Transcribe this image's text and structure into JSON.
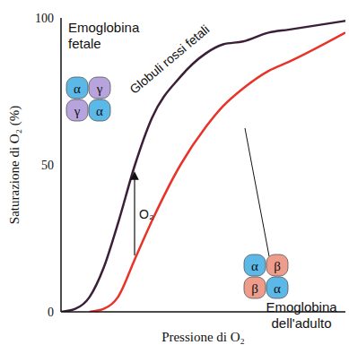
{
  "chart_data": {
    "type": "line",
    "xlabel": "Pressione di O₂",
    "ylabel": "Saturazione di O₂ (%)",
    "x": [
      0,
      5,
      10,
      15,
      20,
      26,
      32,
      42,
      51,
      57,
      64,
      73,
      80,
      100
    ],
    "series": [
      {
        "name": "Globuli rossi fetali",
        "color": "#3b1f38",
        "values": [
          0,
          1,
          5,
          15,
          30,
          50,
          66,
          80,
          88,
          91,
          92,
          95,
          96,
          99
        ],
        "label_lines": [
          "Emoglobina",
          "fetale"
        ],
        "subunits": [
          "α",
          "γ",
          "γ",
          "α"
        ],
        "colors": [
          "#5cb8e6",
          "#b8a4dc",
          "#b8a4dc",
          "#5cb8e6"
        ]
      },
      {
        "color": "#e8332a",
        "values": [
          null,
          null,
          0,
          1,
          5,
          18,
          31,
          50,
          63,
          70,
          76,
          82,
          85,
          95
        ],
        "label_lines": [
          "Emoglobina",
          "dell'adulto"
        ],
        "subunits": [
          "α",
          "β",
          "β",
          "α"
        ],
        "colors": [
          "#5cb8e6",
          "#ee9c8c",
          "#ee9c8c",
          "#5cb8e6"
        ]
      }
    ],
    "annotations": [
      {
        "text": "O₂"
      }
    ],
    "xlim": [
      0,
      100
    ],
    "ylim": [
      0,
      100
    ],
    "yticks": [
      0,
      50,
      100
    ],
    "tick_labels": "y"
  }
}
